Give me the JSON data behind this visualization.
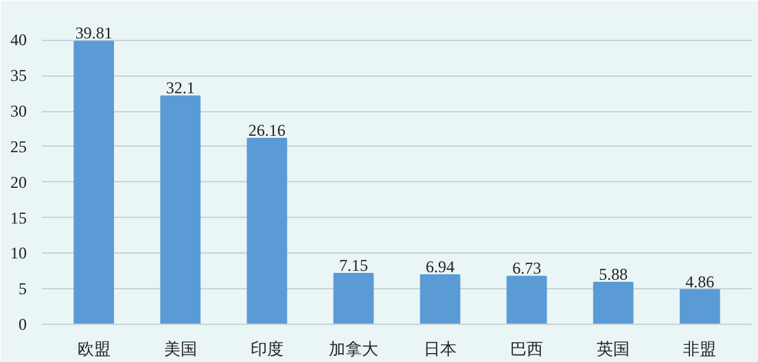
{
  "chart_data": {
    "type": "bar",
    "categories": [
      "欧盟",
      "美国",
      "印度",
      "加拿大",
      "日本",
      "巴西",
      "英国",
      "非盟"
    ],
    "values": [
      39.81,
      32.1,
      26.16,
      7.15,
      6.94,
      6.73,
      5.88,
      4.86
    ],
    "color": "#5b9bd5",
    "ylim": [
      0,
      44
    ],
    "yticks": [
      0,
      5,
      10,
      15,
      20,
      25,
      30,
      35,
      40
    ],
    "grid": "y",
    "data_labels": true
  }
}
